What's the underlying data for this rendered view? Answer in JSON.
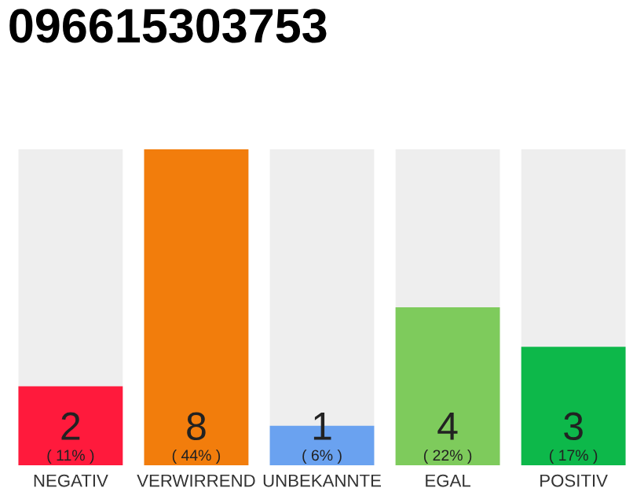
{
  "chart_data": {
    "type": "bar",
    "title": "096615303753",
    "categories": [
      "NEGATIV",
      "VERWIRREND",
      "UNBEKANNTE",
      "EGAL",
      "POSITIV"
    ],
    "values": [
      2,
      8,
      1,
      4,
      3
    ],
    "colors": [
      "#ff1a3c",
      "#f27d0c",
      "#6aa2f0",
      "#7ecb5c",
      "#0db84a"
    ],
    "value_labels": [
      "2\n( 11% )",
      "8\n( 44% )",
      "1\n( 6% )",
      "4\n( 22% )",
      "3\n( 17% )"
    ],
    "grid": false,
    "legend": false
  }
}
